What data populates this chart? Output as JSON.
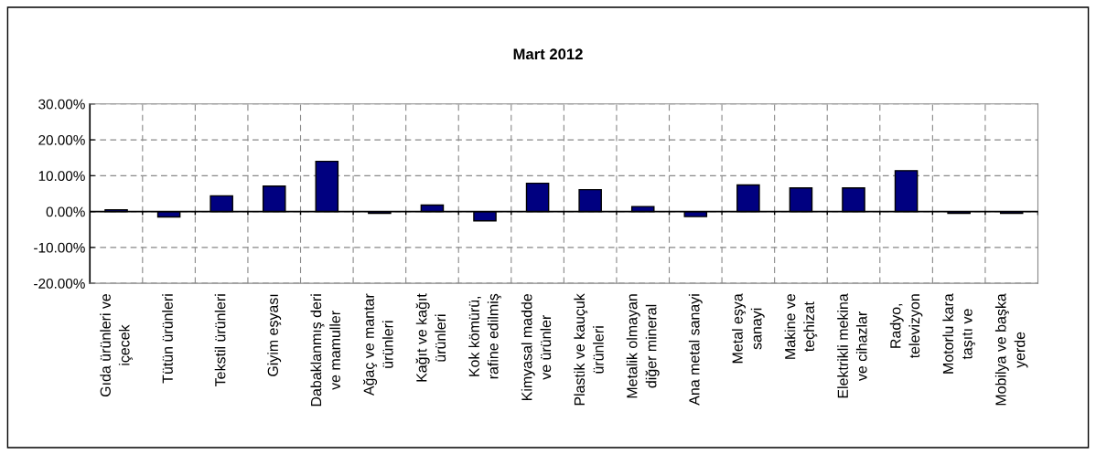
{
  "chart_data": {
    "type": "bar",
    "title": "Mart 2012",
    "categories": [
      "Gıda ürünleri ve\niçecek",
      "Tütün ürünleri",
      "Tekstil ürünleri",
      "Giyim eşyası",
      "Dabaklanmış deri\nve mamuller",
      "Ağaç ve mantar\nürünleri",
      "Kağıt ve kağıt\nürünleri",
      "Kok kömürü,\nrafine edilmiş",
      "Kimyasal madde\nve ürünler",
      "Plastik ve kauçuk\nürünleri",
      "Metalik olmayan\ndiğer mineral",
      "Ana metal sanayi",
      "Metal eşya\nsanayi",
      "Makine ve\nteçhizat",
      "Elektrikli mekina\nve cihazlar",
      "Radyo,\ntelevizyon",
      "Motorlu kara\ntaşıtı ve",
      "Mobilya ve başka\nyerde"
    ],
    "values": [
      0.5,
      -1.5,
      4.4,
      7.1,
      14.0,
      -0.5,
      1.8,
      -2.6,
      7.9,
      6.1,
      1.4,
      -1.4,
      7.4,
      6.6,
      6.6,
      11.4,
      -0.5,
      -0.5
    ],
    "color": "#000080",
    "ylim": [
      -20,
      30
    ],
    "yticks": [
      {
        "value": -20,
        "label": "-20.00%"
      },
      {
        "value": -10,
        "label": "-10.00%"
      },
      {
        "value": 0,
        "label": "0.00%"
      },
      {
        "value": 10,
        "label": "10.00%"
      },
      {
        "value": 20,
        "label": "20.00%"
      },
      {
        "value": 30,
        "label": "30.00%"
      }
    ],
    "grid": true,
    "legend": false
  }
}
